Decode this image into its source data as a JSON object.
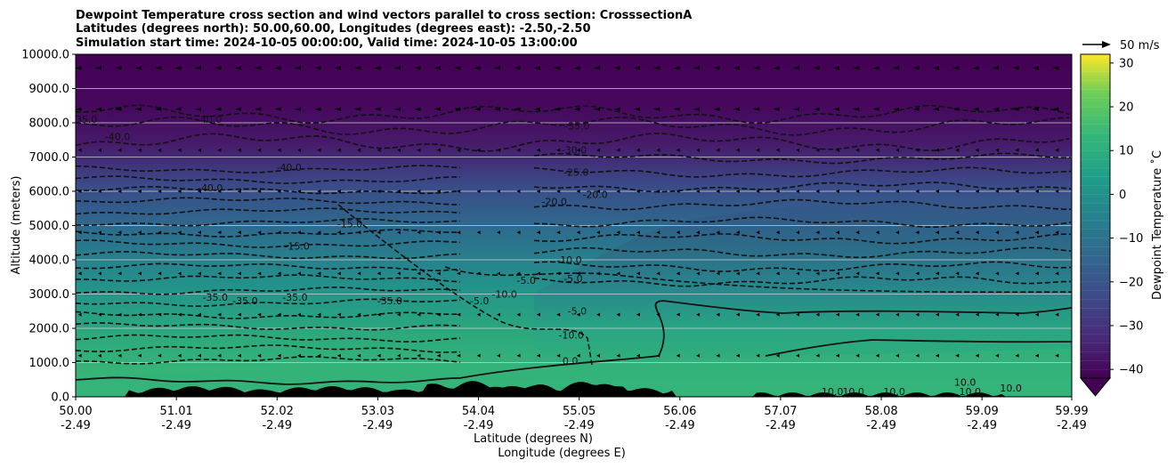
{
  "chart_data": {
    "type": "contour",
    "title_lines": [
      "Dewpoint Temperature cross section and wind vectors parallel to cross section: CrosssectionA",
      "Latitudes (degrees north): 50.00,60.00, Longitudes (degrees east): -2.50,-2.50",
      "Simulation start time: 2024-10-05 00:00:00, Valid time: 2024-10-05 13:00:00"
    ],
    "xlabel_lines": [
      "Latitude (degrees N)",
      "Longitude (degrees E)"
    ],
    "ylabel": "Altitude (meters)",
    "xlim": [
      50.0,
      59.99
    ],
    "ylim": [
      0,
      10000
    ],
    "x_ticks": [
      {
        "lat": "50.00",
        "lon": "-2.49",
        "value": 50.0
      },
      {
        "lat": "51.01",
        "lon": "-2.49",
        "value": 51.01
      },
      {
        "lat": "52.02",
        "lon": "-2.49",
        "value": 52.02
      },
      {
        "lat": "53.03",
        "lon": "-2.49",
        "value": 53.03
      },
      {
        "lat": "54.04",
        "lon": "-2.49",
        "value": 54.04
      },
      {
        "lat": "55.05",
        "lon": "-2.49",
        "value": 55.05
      },
      {
        "lat": "56.06",
        "lon": "-2.49",
        "value": 56.06
      },
      {
        "lat": "57.07",
        "lon": "-2.49",
        "value": 57.07
      },
      {
        "lat": "58.08",
        "lon": "-2.49",
        "value": 58.08
      },
      {
        "lat": "59.09",
        "lon": "-2.49",
        "value": 59.09
      },
      {
        "lat": "59.99",
        "lon": "-2.49",
        "value": 59.99
      }
    ],
    "y_ticks": [
      "0.0",
      "1000.0",
      "2000.0",
      "3000.0",
      "4000.0",
      "5000.0",
      "6000.0",
      "7000.0",
      "8000.0",
      "9000.0",
      "10000.0"
    ],
    "grid": "horizontal",
    "colorbar": {
      "label": "Dewpoint Temperature ˚C",
      "min": -42,
      "max": 32,
      "ticks": [
        "−40",
        "−30",
        "−20",
        "−10",
        "0",
        "10",
        "20",
        "30"
      ],
      "extend": "min",
      "colormap": "viridis"
    },
    "quiver_key": "50 m/s",
    "contour_labels": [
      {
        "text": "-35.0",
        "x": 50.09,
        "y": 8000
      },
      {
        "text": "-40.0",
        "x": 50.42,
        "y": 7500
      },
      {
        "text": "-40.0",
        "x": 51.34,
        "y": 8000
      },
      {
        "text": "-40.0",
        "x": 52.14,
        "y": 6600
      },
      {
        "text": "-40.0",
        "x": 51.35,
        "y": 6000
      },
      {
        "text": "-15.0",
        "x": 52.75,
        "y": 4950
      },
      {
        "text": "-15.0",
        "x": 52.22,
        "y": 4300
      },
      {
        "text": "-35.0",
        "x": 51.4,
        "y": 2800
      },
      {
        "text": "-35.0",
        "x": 51.7,
        "y": 2700
      },
      {
        "text": "-35.0",
        "x": 52.2,
        "y": 2800
      },
      {
        "text": "-35.0",
        "x": 53.15,
        "y": 2700
      },
      {
        "text": "-35.0",
        "x": 55.03,
        "y": 7800
      },
      {
        "text": "-30.0",
        "x": 55.0,
        "y": 7100
      },
      {
        "text": "-25.0",
        "x": 55.02,
        "y": 6450
      },
      {
        "text": "-20.0",
        "x": 55.21,
        "y": 5800
      },
      {
        "text": "-20.0",
        "x": 54.8,
        "y": 5600
      },
      {
        "text": "-10.0",
        "x": 54.95,
        "y": 3900
      },
      {
        "text": "-5.0",
        "x": 54.52,
        "y": 3300
      },
      {
        "text": "-5.0",
        "x": 54.99,
        "y": 3350
      },
      {
        "text": "-10.0",
        "x": 54.3,
        "y": 2900
      },
      {
        "text": "-5.0",
        "x": 54.05,
        "y": 2700
      },
      {
        "text": "-5.0",
        "x": 55.03,
        "y": 2400
      },
      {
        "text": "-10.0",
        "x": 54.97,
        "y": 1700
      },
      {
        "text": "0.0",
        "x": 54.96,
        "y": 950
      },
      {
        "text": "10.0",
        "x": 57.59,
        "y": 50
      },
      {
        "text": "10.0",
        "x": 57.8,
        "y": 50
      },
      {
        "text": "10.0",
        "x": 58.21,
        "y": 50
      },
      {
        "text": "10.0",
        "x": 58.92,
        "y": 320
      },
      {
        "text": "10.0",
        "x": 58.97,
        "y": 50
      },
      {
        "text": "10.0",
        "x": 59.38,
        "y": 150
      }
    ]
  }
}
